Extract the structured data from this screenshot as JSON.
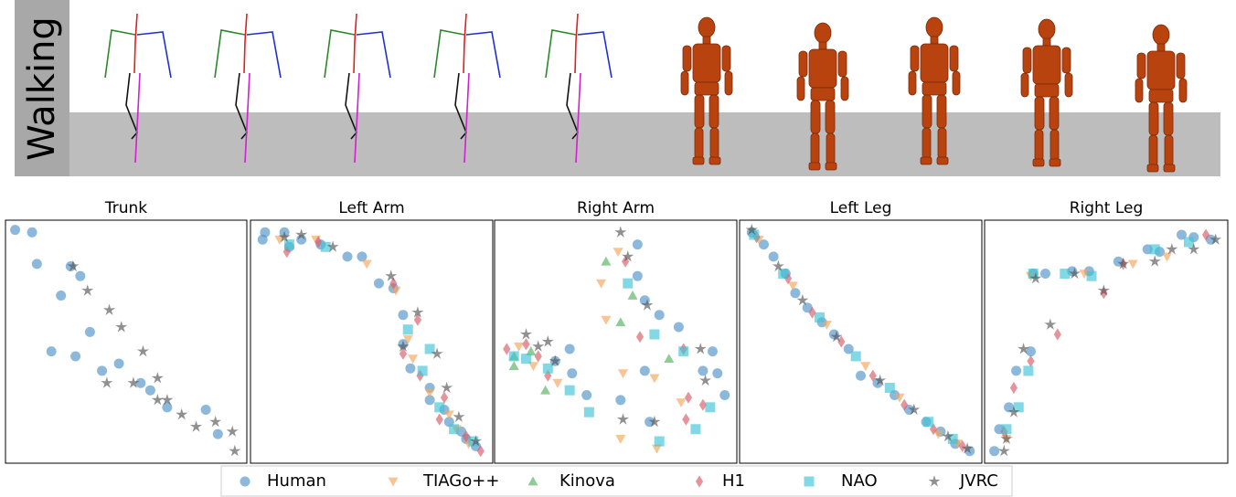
{
  "side_label": "Walking",
  "legend": [
    {
      "name": "Human",
      "color": "#4f94c8",
      "marker": "circle"
    },
    {
      "name": "TIAGo++",
      "color": "#f5a45a",
      "marker": "triangle-down"
    },
    {
      "name": "Kinova",
      "color": "#55b060",
      "marker": "triangle-up"
    },
    {
      "name": "H1",
      "color": "#d85a66",
      "marker": "diamond"
    },
    {
      "name": "NAO",
      "color": "#3fc3d6",
      "marker": "square"
    },
    {
      "name": "JVRC",
      "color": "#555555",
      "marker": "star"
    }
  ],
  "chart_data": [
    {
      "type": "scatter",
      "title": "Trunk",
      "xlim": [
        0,
        100
      ],
      "ylim": [
        0,
        100
      ],
      "series": [
        {
          "x": [
            4,
            11,
            13,
            23,
            31,
            35,
            19,
            29,
            40,
            47,
            56,
            60,
            67,
            83,
            88,
            27
          ],
          "values": [
            96,
            95,
            82,
            69,
            77,
            54,
            46,
            44,
            38,
            41,
            33,
            30,
            23,
            22,
            12,
            81
          ]
        },
        {
          "x": [],
          "values": []
        },
        {
          "x": [],
          "values": []
        },
        {
          "x": [],
          "values": []
        },
        {
          "x": [],
          "values": []
        },
        {
          "x": [
            28,
            34,
            43,
            48,
            57,
            63,
            42,
            53,
            63,
            67,
            73,
            79,
            87,
            94,
            95
          ],
          "values": [
            81,
            71,
            63,
            56,
            46,
            35,
            33,
            33,
            26,
            26,
            20,
            15,
            17,
            13,
            5
          ]
        }
      ]
    },
    {
      "type": "scatter",
      "title": "Left Arm",
      "xlim": [
        0,
        100
      ],
      "ylim": [
        0,
        100
      ],
      "series": [
        {
          "x": [
            6,
            5,
            14,
            16,
            21,
            29,
            40,
            46,
            53,
            59,
            63,
            63,
            66,
            74,
            74,
            80,
            82,
            87,
            89,
            93
          ],
          "values": [
            95,
            92,
            95,
            89,
            92,
            90,
            85,
            85,
            74,
            72,
            61,
            49,
            39,
            31,
            26,
            22,
            17,
            13,
            10,
            7
          ]
        },
        {
          "x": [
            12,
            27,
            48,
            60,
            65,
            67,
            74,
            82,
            85,
            90
          ],
          "values": [
            92,
            92,
            82,
            71,
            51,
            43,
            29,
            20,
            14,
            8
          ]
        },
        {
          "x": [],
          "values": []
        },
        {
          "x": [
            15,
            28,
            59,
            69,
            63,
            70,
            80,
            78,
            89,
            95
          ],
          "values": [
            87,
            91,
            74,
            59,
            45,
            36,
            27,
            18,
            11,
            5
          ]
        },
        {
          "x": [
            16,
            31,
            65,
            74,
            71,
            78,
            84,
            92
          ],
          "values": [
            90,
            89,
            55,
            47,
            38,
            23,
            14,
            9
          ]
        },
        {
          "x": [
            14,
            21,
            34,
            58,
            69,
            63,
            77,
            81,
            86,
            93
          ],
          "values": [
            93,
            94,
            89,
            77,
            62,
            48,
            45,
            31,
            19,
            9
          ]
        }
      ]
    },
    {
      "type": "scatter",
      "title": "Right Arm",
      "xlim": [
        0,
        100
      ],
      "ylim": [
        0,
        100
      ],
      "series": [
        {
          "x": [
            59,
            62,
            68,
            76,
            59,
            31,
            32,
            38,
            52,
            62,
            64,
            90,
            92,
            95,
            86,
            25
          ],
          "values": [
            90,
            67,
            61,
            56,
            77,
            47,
            37,
            28,
            26,
            38,
            17,
            46,
            37,
            28,
            38,
            42
          ]
        },
        {
          "x": [
            46,
            51,
            44,
            53,
            66,
            77,
            10,
            16,
            67,
            52,
            26
          ],
          "values": [
            59,
            87,
            74,
            37,
            35,
            25,
            48,
            40,
            6,
            10,
            33
          ]
        },
        {
          "x": [
            46,
            52,
            57,
            72,
            8,
            15,
            21,
            8
          ],
          "values": [
            83,
            58,
            69,
            43,
            40,
            46,
            30,
            44
          ]
        },
        {
          "x": [
            5,
            13,
            18,
            54,
            60,
            78,
            79,
            80,
            86,
            22
          ],
          "values": [
            47,
            49,
            44,
            83,
            52,
            47,
            18,
            27,
            24,
            36
          ]
        },
        {
          "x": [
            8,
            13,
            22,
            55,
            66,
            78,
            89,
            83,
            68,
            31,
            39
          ],
          "values": [
            44,
            43,
            39,
            74,
            53,
            46,
            23,
            14,
            9,
            30,
            21
          ]
        },
        {
          "x": [
            52,
            55,
            13,
            22,
            25,
            63,
            85,
            87,
            53,
            66,
            18
          ],
          "values": [
            95,
            85,
            53,
            50,
            42,
            65,
            47,
            34,
            18,
            17,
            48
          ]
        }
      ]
    },
    {
      "type": "scatter",
      "title": "Left Leg",
      "xlim": [
        0,
        100
      ],
      "ylim": [
        0,
        100
      ],
      "series": [
        {
          "x": [
            5,
            10,
            14,
            19,
            23,
            28,
            34,
            39,
            45,
            50,
            57,
            64,
            70,
            77,
            83,
            89,
            95
          ],
          "values": [
            95,
            90,
            85,
            78,
            70,
            64,
            58,
            53,
            47,
            36,
            33,
            28,
            22,
            17,
            13,
            8,
            5
          ]
        },
        {
          "x": [
            8,
            22,
            36,
            52,
            66,
            82,
            90
          ],
          "values": [
            92,
            73,
            57,
            40,
            27,
            12,
            8
          ]
        },
        {
          "x": [],
          "values": []
        },
        {
          "x": [
            7,
            20,
            30,
            42,
            55,
            68,
            80,
            92
          ],
          "values": [
            93,
            76,
            62,
            50,
            36,
            24,
            14,
            7
          ]
        },
        {
          "x": [
            6,
            18,
            33,
            48,
            62,
            78,
            88
          ],
          "values": [
            94,
            78,
            60,
            44,
            31,
            17,
            10
          ]
        },
        {
          "x": [
            5,
            16,
            26,
            40,
            58,
            72,
            86,
            94
          ],
          "values": [
            96,
            81,
            67,
            52,
            34,
            22,
            11,
            6
          ]
        }
      ]
    },
    {
      "type": "scatter",
      "title": "Right Leg",
      "xlim": [
        0,
        100
      ],
      "ylim": [
        0,
        100
      ],
      "series": [
        {
          "x": [
            4,
            6,
            10,
            13,
            19,
            20,
            25,
            36,
            43,
            55,
            67,
            72,
            81,
            86,
            93
          ],
          "values": [
            5,
            14,
            23,
            38,
            46,
            78,
            78,
            79,
            79,
            83,
            88,
            87,
            94,
            93,
            92
          ]
        },
        {
          "x": [
            9,
            19,
            41,
            61,
            75
          ],
          "values": [
            10,
            77,
            78,
            82,
            85
          ]
        },
        {
          "x": [],
          "values": []
        },
        {
          "x": [
            8,
            12,
            19,
            30,
            49,
            57,
            91
          ],
          "values": [
            13,
            31,
            42,
            53,
            70,
            82,
            94
          ]
        },
        {
          "x": [
            9,
            14,
            18,
            20,
            33,
            44,
            70,
            84
          ],
          "values": [
            14,
            23,
            38,
            78,
            78,
            77,
            88,
            91
          ]
        },
        {
          "x": [
            8,
            9,
            12,
            16,
            21,
            27,
            37,
            49,
            57,
            70,
            77,
            86,
            95
          ],
          "values": [
            5,
            10,
            21,
            47,
            76,
            57,
            78,
            71,
            82,
            83,
            88,
            88,
            92
          ]
        }
      ]
    }
  ]
}
